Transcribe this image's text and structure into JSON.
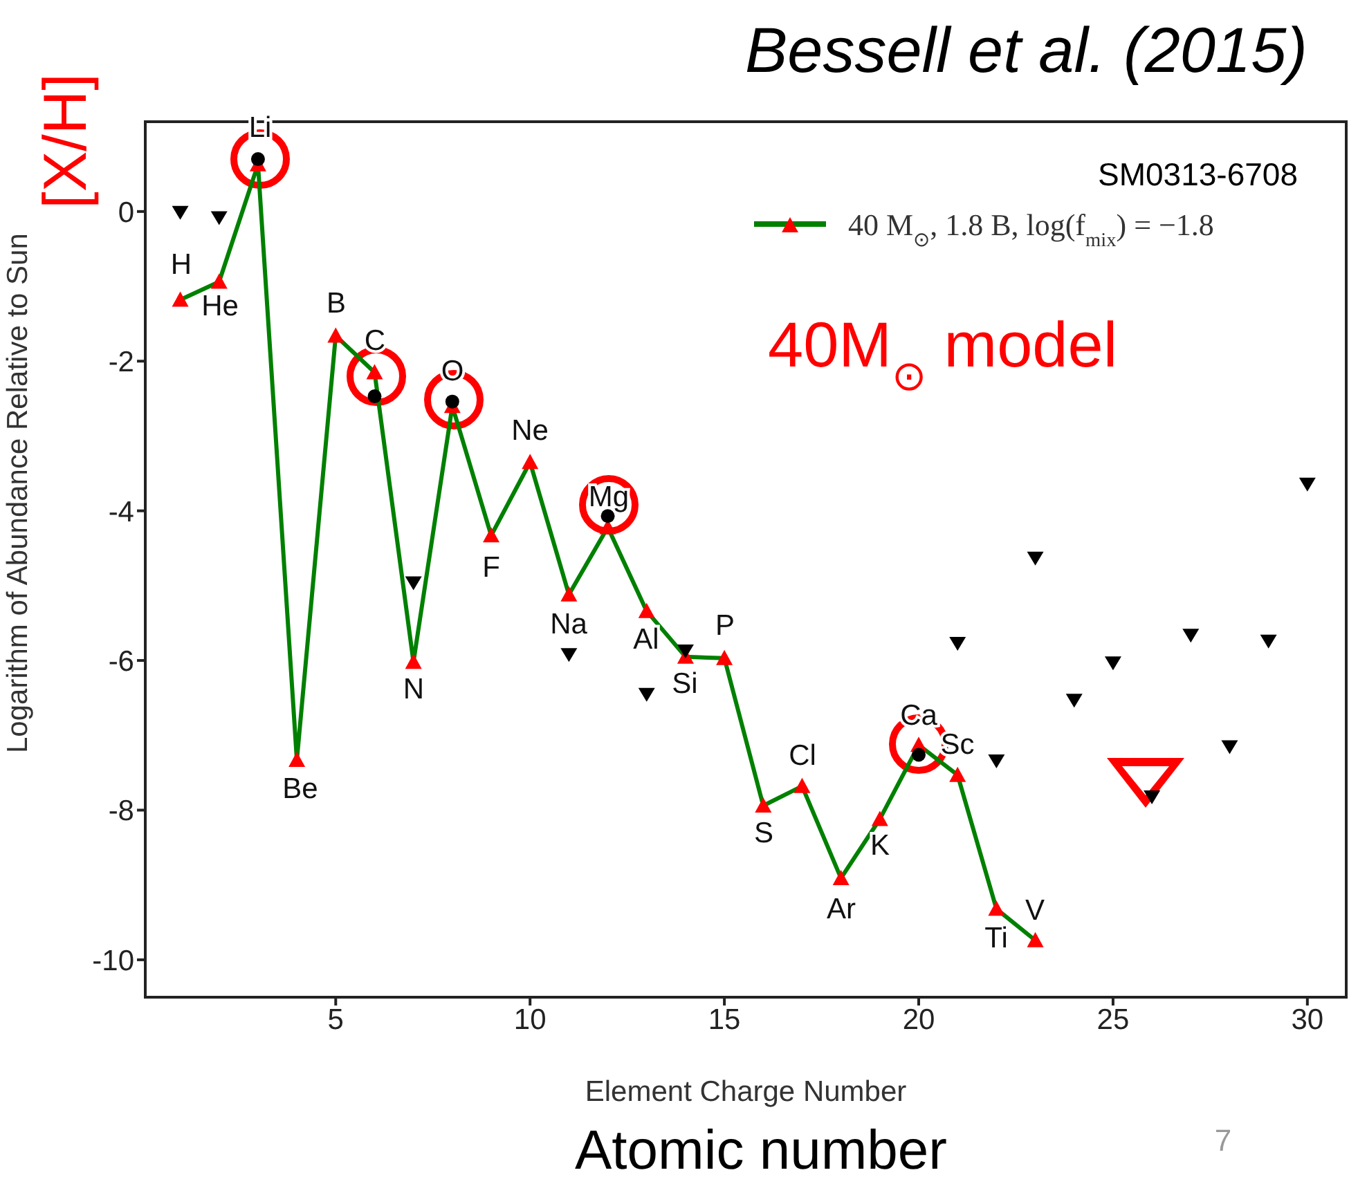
{
  "chart_data": {
    "type": "line",
    "xlabel": "Element Charge Number",
    "ylabel": "Logarithm of Abundance Relative to Sun",
    "xlim": [
      0.1,
      31
    ],
    "xticks": [
      5,
      10,
      15,
      20,
      25,
      30
    ],
    "ylim": [
      -10.5,
      1.2
    ],
    "yticks": [
      0,
      -2,
      -4,
      -6,
      -8,
      -10
    ],
    "grid": false,
    "legend": "top right",
    "series": [
      {
        "name": "40 M$_{⊙}$, 1.8 B, log(f$_{mix}$) = −1.8",
        "color": "#008000",
        "marker": "triangle",
        "line_style": "solid",
        "x": [
          1,
          2,
          3,
          4,
          5,
          6,
          7,
          8,
          9,
          10,
          11,
          12,
          13,
          14,
          15,
          16,
          17,
          18,
          19,
          20,
          21,
          22,
          23
        ],
        "values": [
          -1.18,
          -0.94,
          0.63,
          -7.33,
          -1.66,
          -2.15,
          -6.02,
          -2.6,
          -4.33,
          -3.35,
          -5.12,
          -4.22,
          -5.34,
          -5.95,
          -5.97,
          -7.94,
          -7.68,
          -8.91,
          -8.12,
          -7.13,
          -7.53,
          -9.32,
          -9.74
        ],
        "colors": [
          "#ff0000",
          "#ff0000",
          "#ff0000",
          "#ff0000",
          "#ff0000",
          "#ff0000",
          "#ff0000",
          "#ff0000",
          "#ff0000",
          "#ff0000",
          "#ff0000",
          "#ff0000",
          "#ff0000",
          "#ff0000",
          "#ff0000",
          "#ff0000",
          "#ff0000",
          "#ff0000",
          "#ff0000",
          "#ff0000",
          "#ff0000",
          "#ff0000",
          "#ff0000"
        ]
      },
      {
        "type": "scatter",
        "color": "#000000",
        "marker": "circle",
        "x": [
          3,
          6,
          8,
          12,
          20
        ],
        "values": [
          0.7,
          -2.47,
          -2.54,
          -4.07,
          -7.26
        ]
      },
      {
        "type": "scatter",
        "color": "#000000",
        "marker": "triangle",
        "x": [
          1,
          2,
          7,
          11,
          13,
          14,
          21,
          22,
          23,
          24,
          25,
          26,
          27,
          28,
          29,
          30
        ],
        "values": [
          0.0,
          -0.07,
          -4.95,
          -5.91,
          -6.44,
          -5.86,
          -5.76,
          -7.33,
          -4.62,
          -6.52,
          -6.02,
          -7.81,
          -5.65,
          -7.14,
          -5.73,
          -3.63
        ]
      }
    ],
    "annotations": [
      "Bessell et al. (2015)",
      "[X/H]",
      "SM0313-6708",
      "40M$_{⊙}$ model",
      "Atomic number",
      "7",
      "H",
      "He",
      "Li",
      "Be",
      "B",
      "C",
      "N",
      "O",
      "F",
      "Ne",
      "Na",
      "Mg",
      "Al",
      "Si",
      "P",
      "S",
      "Cl",
      "Ar",
      "K",
      "Ca",
      "Sc",
      "Ti",
      "V"
    ]
  }
}
